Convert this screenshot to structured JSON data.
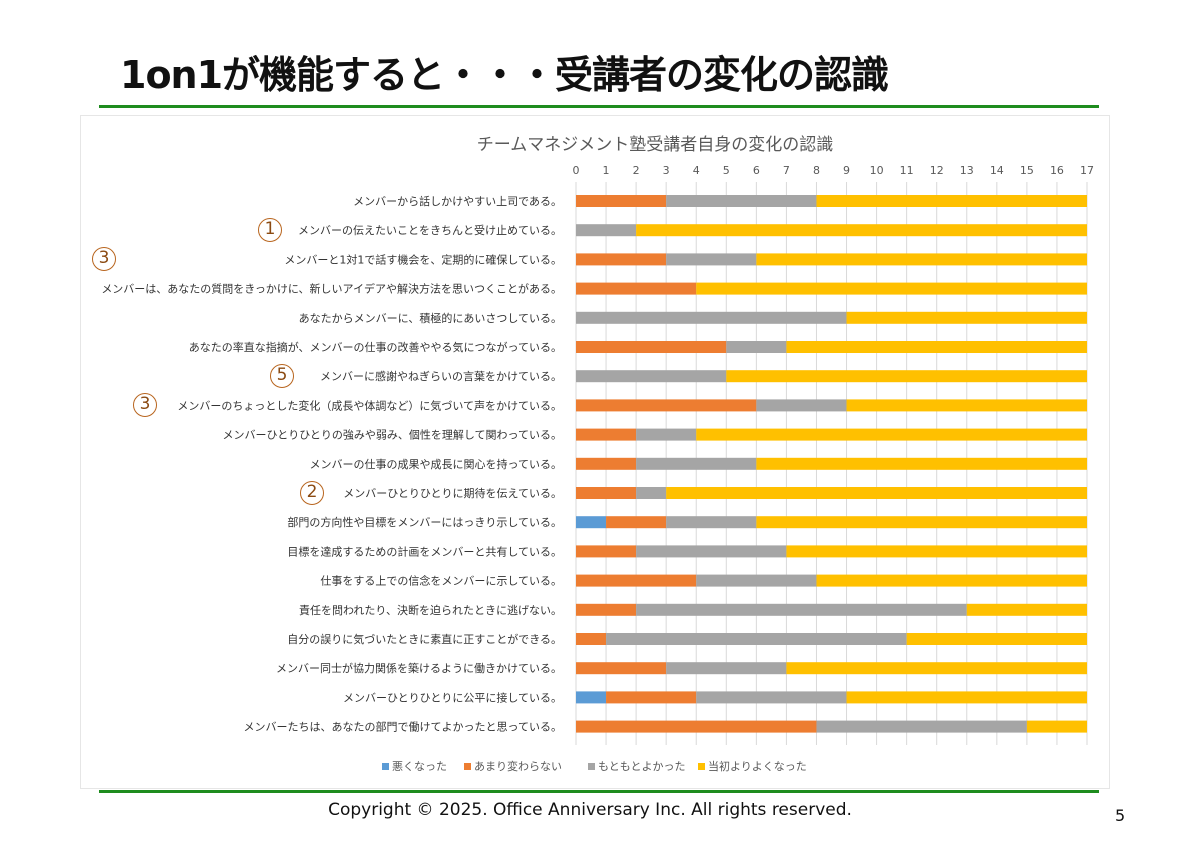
{
  "slide": {
    "title": "1on1が機能すると・・・受講者の変化の認識",
    "footer": "Copyright ©  2025. Office Anniversary Inc. All rights reserved.",
    "page_number": "5",
    "accent_color": "#1E8C1E"
  },
  "annotations": [
    {
      "label": "1",
      "row": 1,
      "position": "near-label"
    },
    {
      "label": "3",
      "row": 2,
      "position": "far-left"
    },
    {
      "label": "5",
      "row": 6,
      "position": "near-label"
    },
    {
      "label": "3",
      "row": 7,
      "position": "near-label"
    },
    {
      "label": "2",
      "row": 10,
      "position": "near-label"
    }
  ],
  "chart_data": {
    "type": "bar",
    "orientation": "horizontal",
    "stacked": true,
    "title": "チームマネジメント塾受講者自身の変化の認識",
    "xlabel": "",
    "ylabel": "",
    "xlim": [
      0,
      17
    ],
    "x_ticks": [
      0,
      1,
      2,
      3,
      4,
      5,
      6,
      7,
      8,
      9,
      10,
      11,
      12,
      13,
      14,
      15,
      16,
      17
    ],
    "x_axis_position": "top",
    "grid": true,
    "legend_position": "bottom",
    "categories": [
      "メンバーから話しかけやすい上司である。",
      "メンバーの伝えたいことをきちんと受け止めている。",
      "メンバーと1対1で話す機会を、定期的に確保している。",
      "メンバーは、あなたの質問をきっかけに、新しいアイデアや解決方法を思いつくことがある。",
      "あなたからメンバーに、積極的にあいさつしている。",
      "あなたの率直な指摘が、メンバーの仕事の改善ややる気につながっている。",
      "メンバーに感謝やねぎらいの言葉をかけている。",
      "メンバーのちょっとした変化（成長や体調など）に気づいて声をかけている。",
      "メンバーひとりひとりの強みや弱み、個性を理解して関わっている。",
      "メンバーの仕事の成果や成長に関心を持っている。",
      "メンバーひとりひとりに期待を伝えている。",
      "部門の方向性や目標をメンバーにはっきり示している。",
      "目標を達成するための計画をメンバーと共有している。",
      "仕事をする上での信念をメンバーに示している。",
      "責任を問われたり、決断を迫られたときに逃げない。",
      "自分の誤りに気づいたときに素直に正すことができる。",
      "メンバー同士が協力関係を築けるように働きかけている。",
      "メンバーひとりひとりに公平に接している。",
      "メンバーたちは、あなたの部門で働けてよかったと思っている。"
    ],
    "series": [
      {
        "name": "悪くなった",
        "color": "#5B9BD5",
        "values": [
          0,
          0,
          0,
          0,
          0,
          0,
          0,
          0,
          0,
          0,
          0,
          1,
          0,
          0,
          0,
          0,
          0,
          1,
          0
        ]
      },
      {
        "name": "あまり変わらない",
        "color": "#ED7D31",
        "values": [
          3,
          0,
          3,
          4,
          0,
          5,
          0,
          6,
          2,
          2,
          2,
          2,
          2,
          4,
          2,
          1,
          3,
          3,
          8
        ]
      },
      {
        "name": "もともとよかった",
        "color": "#A5A5A5",
        "values": [
          5,
          2,
          3,
          0,
          9,
          2,
          5,
          3,
          2,
          4,
          1,
          3,
          5,
          4,
          11,
          10,
          4,
          5,
          7
        ]
      },
      {
        "name": "当初よりよくなった",
        "color": "#FFC000",
        "values": [
          9,
          15,
          11,
          13,
          8,
          10,
          12,
          8,
          13,
          11,
          14,
          11,
          10,
          9,
          4,
          6,
          10,
          8,
          2
        ]
      }
    ]
  }
}
